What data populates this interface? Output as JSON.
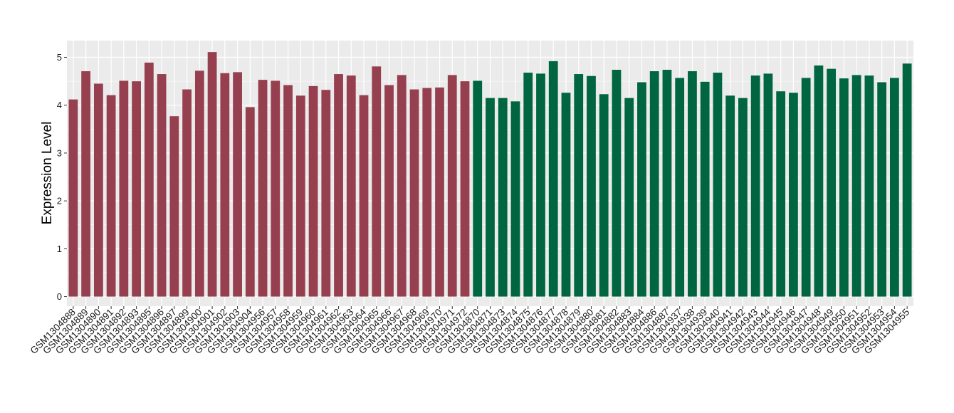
{
  "chart_data": {
    "type": "bar",
    "title": "",
    "xlabel": "",
    "ylabel": "Expression Level",
    "ylim": [
      -0.2,
      5.35
    ],
    "yticks": [
      0,
      1,
      2,
      3,
      4,
      5
    ],
    "grid": true,
    "legend": "none",
    "panel_background": "#ebebeb",
    "grid_color": "#ffffff",
    "colors": {
      "group_1": "#96404f",
      "group_2": "#006641"
    },
    "categories": [
      "GSM1304888",
      "GSM1304889",
      "GSM1304890",
      "GSM1304891",
      "GSM1304892",
      "GSM1304893",
      "GSM1304895",
      "GSM1304896",
      "GSM1304897",
      "GSM1304899",
      "GSM1304900",
      "GSM1304901",
      "GSM1304902",
      "GSM1304903",
      "GSM1304904",
      "GSM1304956",
      "GSM1304957",
      "GSM1304958",
      "GSM1304959",
      "GSM1304960",
      "GSM1304961",
      "GSM1304962",
      "GSM1304963",
      "GSM1304964",
      "GSM1304965",
      "GSM1304966",
      "GSM1304967",
      "GSM1304968",
      "GSM1304969",
      "GSM1304970",
      "GSM1304971",
      "GSM1304972",
      "GSM1304870",
      "GSM1304871",
      "GSM1304873",
      "GSM1304874",
      "GSM1304875",
      "GSM1304876",
      "GSM1304877",
      "GSM1304878",
      "GSM1304879",
      "GSM1304880",
      "GSM1304881",
      "GSM1304882",
      "GSM1304883",
      "GSM1304884",
      "GSM1304886",
      "GSM1304887",
      "GSM1304937",
      "GSM1304938",
      "GSM1304939",
      "GSM1304940",
      "GSM1304941",
      "GSM1304942",
      "GSM1304943",
      "GSM1304944",
      "GSM1304945",
      "GSM1304946",
      "GSM1304947",
      "GSM1304948",
      "GSM1304949",
      "GSM1304950",
      "GSM1304951",
      "GSM1304952",
      "GSM1304953",
      "GSM1304954",
      "GSM1304955"
    ],
    "values": [
      4.12,
      4.71,
      4.45,
      4.21,
      4.51,
      4.5,
      4.89,
      4.65,
      3.77,
      4.33,
      4.72,
      5.11,
      4.67,
      4.69,
      3.96,
      4.53,
      4.51,
      4.42,
      4.2,
      4.4,
      4.32,
      4.65,
      4.62,
      4.21,
      4.81,
      4.42,
      4.63,
      4.33,
      4.36,
      4.37,
      4.63,
      4.5,
      4.51,
      4.15,
      4.15,
      4.08,
      4.68,
      4.66,
      4.92,
      4.26,
      4.65,
      4.61,
      4.23,
      4.74,
      4.15,
      4.48,
      4.71,
      4.74,
      4.57,
      4.71,
      4.49,
      4.68,
      4.2,
      4.15,
      4.62,
      4.66,
      4.29,
      4.26,
      4.57,
      4.83,
      4.76,
      4.56,
      4.63,
      4.62,
      4.48,
      4.57,
      4.87
    ],
    "groups": [
      1,
      1,
      1,
      1,
      1,
      1,
      1,
      1,
      1,
      1,
      1,
      1,
      1,
      1,
      1,
      1,
      1,
      1,
      1,
      1,
      1,
      1,
      1,
      1,
      1,
      1,
      1,
      1,
      1,
      1,
      1,
      1,
      2,
      2,
      2,
      2,
      2,
      2,
      2,
      2,
      2,
      2,
      2,
      2,
      2,
      2,
      2,
      2,
      2,
      2,
      2,
      2,
      2,
      2,
      2,
      2,
      2,
      2,
      2,
      2,
      2,
      2,
      2,
      2,
      2,
      2,
      2
    ]
  }
}
